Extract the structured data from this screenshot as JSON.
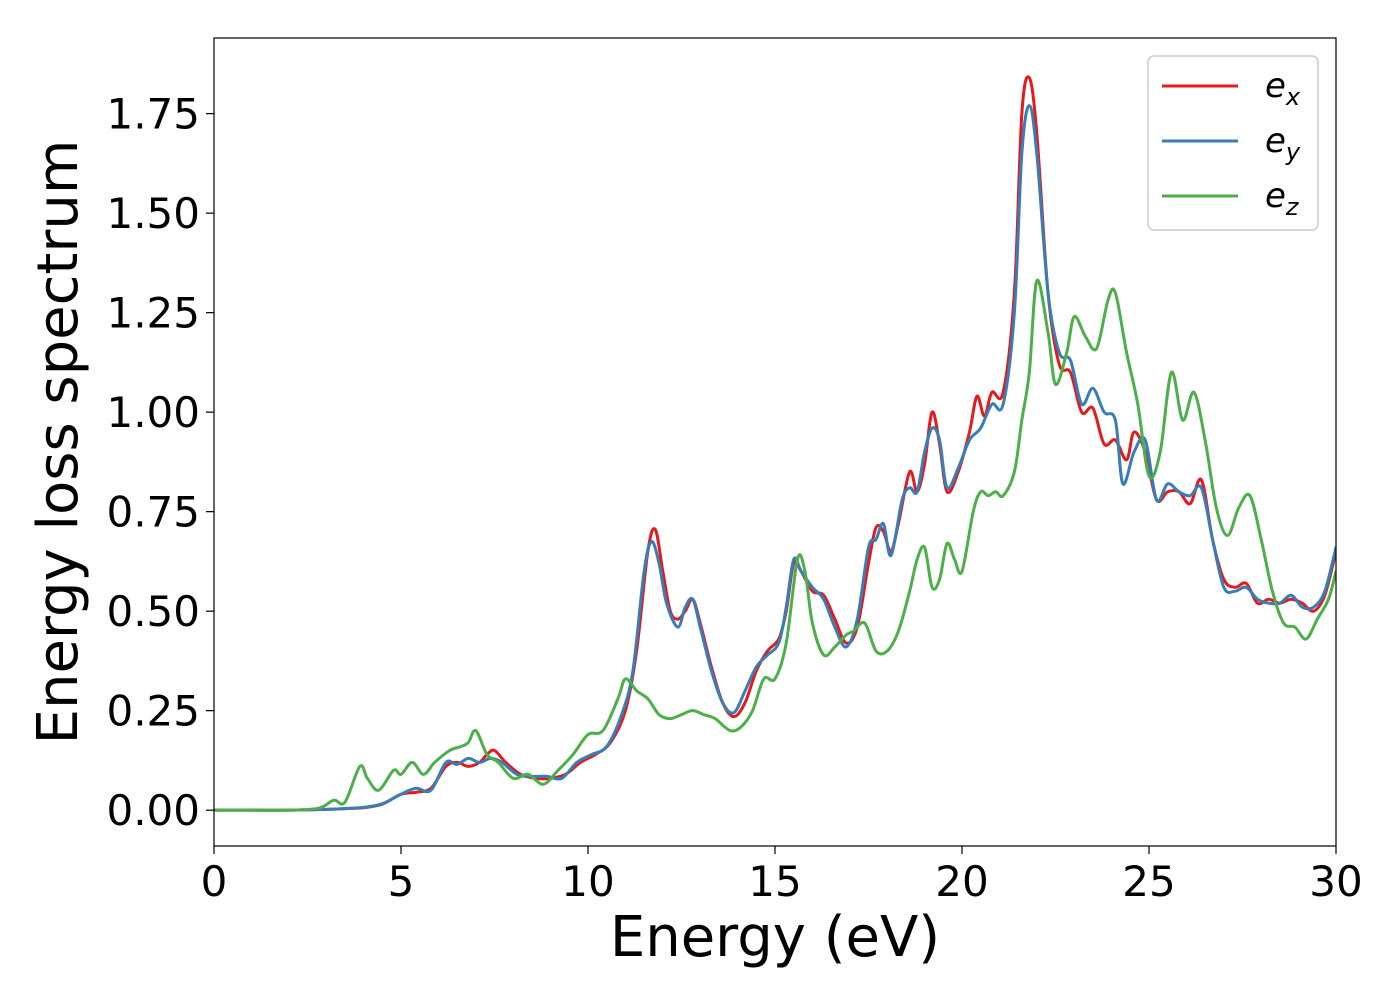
{
  "chart_data": {
    "type": "line",
    "title": "",
    "xlabel": "Energy (eV)",
    "ylabel": "Energy loss spectrum",
    "xlim": [
      0,
      30
    ],
    "ylim": [
      -0.09,
      1.94
    ],
    "xticks": [
      0,
      5,
      10,
      15,
      20,
      25,
      30
    ],
    "xtick_labels": [
      "0",
      "5",
      "10",
      "15",
      "20",
      "25",
      "30"
    ],
    "yticks": [
      0.0,
      0.25,
      0.5,
      0.75,
      1.0,
      1.25,
      1.5,
      1.75
    ],
    "ytick_labels": [
      "0.00",
      "0.25",
      "0.50",
      "0.75",
      "1.00",
      "1.25",
      "1.50",
      "1.75"
    ],
    "grid": false,
    "legend_position": "top-right",
    "series": [
      {
        "name": "e",
        "subscript": "x",
        "color": "#e41a1c",
        "points": [
          [
            0,
            0.0
          ],
          [
            1,
            0.0
          ],
          [
            2,
            0.0
          ],
          [
            3,
            0.002
          ],
          [
            3.5,
            0.004
          ],
          [
            4,
            0.006
          ],
          [
            4.5,
            0.015
          ],
          [
            5,
            0.04
          ],
          [
            5.4,
            0.045
          ],
          [
            5.8,
            0.055
          ],
          [
            6.2,
            0.11
          ],
          [
            6.5,
            0.12
          ],
          [
            6.8,
            0.11
          ],
          [
            7.1,
            0.12
          ],
          [
            7.3,
            0.14
          ],
          [
            7.5,
            0.15
          ],
          [
            7.8,
            0.12
          ],
          [
            8.2,
            0.09
          ],
          [
            8.6,
            0.08
          ],
          [
            9.0,
            0.08
          ],
          [
            9.4,
            0.09
          ],
          [
            9.8,
            0.12
          ],
          [
            10.2,
            0.14
          ],
          [
            10.6,
            0.17
          ],
          [
            11.0,
            0.25
          ],
          [
            11.3,
            0.4
          ],
          [
            11.6,
            0.65
          ],
          [
            11.8,
            0.705
          ],
          [
            12.0,
            0.6
          ],
          [
            12.2,
            0.5
          ],
          [
            12.4,
            0.48
          ],
          [
            12.6,
            0.5
          ],
          [
            12.8,
            0.53
          ],
          [
            13.0,
            0.47
          ],
          [
            13.3,
            0.36
          ],
          [
            13.6,
            0.27
          ],
          [
            13.9,
            0.235
          ],
          [
            14.2,
            0.27
          ],
          [
            14.5,
            0.35
          ],
          [
            14.8,
            0.4
          ],
          [
            15.1,
            0.43
          ],
          [
            15.3,
            0.5
          ],
          [
            15.5,
            0.62
          ],
          [
            15.7,
            0.6
          ],
          [
            16.0,
            0.55
          ],
          [
            16.3,
            0.54
          ],
          [
            16.6,
            0.48
          ],
          [
            16.9,
            0.42
          ],
          [
            17.2,
            0.46
          ],
          [
            17.5,
            0.62
          ],
          [
            17.7,
            0.71
          ],
          [
            17.9,
            0.7
          ],
          [
            18.1,
            0.65
          ],
          [
            18.3,
            0.72
          ],
          [
            18.6,
            0.85
          ],
          [
            18.8,
            0.8
          ],
          [
            19.0,
            0.87
          ],
          [
            19.2,
            1.0
          ],
          [
            19.4,
            0.92
          ],
          [
            19.6,
            0.8
          ],
          [
            19.9,
            0.85
          ],
          [
            20.2,
            0.95
          ],
          [
            20.4,
            1.04
          ],
          [
            20.6,
            0.99
          ],
          [
            20.8,
            1.05
          ],
          [
            21.1,
            1.05
          ],
          [
            21.4,
            1.3
          ],
          [
            21.6,
            1.75
          ],
          [
            21.8,
            1.84
          ],
          [
            22.0,
            1.7
          ],
          [
            22.3,
            1.3
          ],
          [
            22.6,
            1.12
          ],
          [
            22.9,
            1.1
          ],
          [
            23.2,
            1.0
          ],
          [
            23.5,
            1.01
          ],
          [
            23.8,
            0.92
          ],
          [
            24.1,
            0.93
          ],
          [
            24.4,
            0.88
          ],
          [
            24.6,
            0.95
          ],
          [
            24.9,
            0.9
          ],
          [
            25.2,
            0.78
          ],
          [
            25.5,
            0.8
          ],
          [
            25.8,
            0.8
          ],
          [
            26.1,
            0.77
          ],
          [
            26.4,
            0.83
          ],
          [
            26.7,
            0.68
          ],
          [
            27.0,
            0.58
          ],
          [
            27.3,
            0.56
          ],
          [
            27.6,
            0.57
          ],
          [
            27.9,
            0.52
          ],
          [
            28.2,
            0.53
          ],
          [
            28.5,
            0.52
          ],
          [
            28.8,
            0.53
          ],
          [
            29.1,
            0.52
          ],
          [
            29.4,
            0.5
          ],
          [
            29.7,
            0.54
          ],
          [
            30,
            0.65
          ]
        ]
      },
      {
        "name": "e",
        "subscript": "y",
        "color": "#377eb8",
        "points": [
          [
            0,
            0.0
          ],
          [
            1,
            0.0
          ],
          [
            2,
            0.0
          ],
          [
            3,
            0.002
          ],
          [
            3.5,
            0.004
          ],
          [
            4,
            0.007
          ],
          [
            4.5,
            0.016
          ],
          [
            5,
            0.04
          ],
          [
            5.4,
            0.055
          ],
          [
            5.8,
            0.05
          ],
          [
            6.2,
            0.12
          ],
          [
            6.5,
            0.115
          ],
          [
            6.8,
            0.13
          ],
          [
            7.1,
            0.12
          ],
          [
            7.4,
            0.13
          ],
          [
            7.7,
            0.12
          ],
          [
            8.1,
            0.09
          ],
          [
            8.5,
            0.085
          ],
          [
            8.9,
            0.085
          ],
          [
            9.3,
            0.08
          ],
          [
            9.7,
            0.12
          ],
          [
            10.1,
            0.14
          ],
          [
            10.5,
            0.16
          ],
          [
            10.9,
            0.24
          ],
          [
            11.2,
            0.35
          ],
          [
            11.5,
            0.6
          ],
          [
            11.7,
            0.675
          ],
          [
            11.9,
            0.62
          ],
          [
            12.1,
            0.52
          ],
          [
            12.4,
            0.46
          ],
          [
            12.6,
            0.51
          ],
          [
            12.8,
            0.53
          ],
          [
            13.0,
            0.46
          ],
          [
            13.3,
            0.35
          ],
          [
            13.6,
            0.27
          ],
          [
            13.9,
            0.245
          ],
          [
            14.2,
            0.3
          ],
          [
            14.5,
            0.36
          ],
          [
            14.8,
            0.39
          ],
          [
            15.1,
            0.42
          ],
          [
            15.3,
            0.51
          ],
          [
            15.5,
            0.63
          ],
          [
            15.7,
            0.6
          ],
          [
            16.0,
            0.56
          ],
          [
            16.3,
            0.53
          ],
          [
            16.6,
            0.46
          ],
          [
            16.9,
            0.41
          ],
          [
            17.2,
            0.48
          ],
          [
            17.5,
            0.66
          ],
          [
            17.7,
            0.68
          ],
          [
            17.9,
            0.72
          ],
          [
            18.1,
            0.64
          ],
          [
            18.4,
            0.78
          ],
          [
            18.6,
            0.81
          ],
          [
            18.8,
            0.8
          ],
          [
            19.0,
            0.9
          ],
          [
            19.2,
            0.96
          ],
          [
            19.4,
            0.93
          ],
          [
            19.6,
            0.81
          ],
          [
            19.9,
            0.86
          ],
          [
            20.2,
            0.93
          ],
          [
            20.5,
            0.96
          ],
          [
            20.8,
            1.02
          ],
          [
            21.1,
            1.02
          ],
          [
            21.4,
            1.25
          ],
          [
            21.6,
            1.65
          ],
          [
            21.8,
            1.77
          ],
          [
            22.0,
            1.65
          ],
          [
            22.3,
            1.3
          ],
          [
            22.6,
            1.15
          ],
          [
            22.9,
            1.13
          ],
          [
            23.2,
            1.02
          ],
          [
            23.5,
            1.06
          ],
          [
            23.8,
            1.0
          ],
          [
            24.1,
            0.98
          ],
          [
            24.3,
            0.82
          ],
          [
            24.6,
            0.9
          ],
          [
            24.9,
            0.93
          ],
          [
            25.2,
            0.78
          ],
          [
            25.5,
            0.82
          ],
          [
            25.8,
            0.8
          ],
          [
            26.1,
            0.79
          ],
          [
            26.4,
            0.81
          ],
          [
            26.7,
            0.68
          ],
          [
            27.0,
            0.56
          ],
          [
            27.3,
            0.55
          ],
          [
            27.6,
            0.56
          ],
          [
            27.9,
            0.53
          ],
          [
            28.2,
            0.52
          ],
          [
            28.5,
            0.52
          ],
          [
            28.8,
            0.54
          ],
          [
            29.1,
            0.51
          ],
          [
            29.4,
            0.51
          ],
          [
            29.7,
            0.55
          ],
          [
            30,
            0.66
          ]
        ]
      },
      {
        "name": "e",
        "subscript": "z",
        "color": "#4daf4a",
        "points": [
          [
            0,
            0.0
          ],
          [
            1,
            0.0
          ],
          [
            2,
            0.0
          ],
          [
            2.8,
            0.005
          ],
          [
            3.2,
            0.025
          ],
          [
            3.5,
            0.02
          ],
          [
            3.9,
            0.11
          ],
          [
            4.1,
            0.08
          ],
          [
            4.4,
            0.05
          ],
          [
            4.8,
            0.1
          ],
          [
            5.0,
            0.09
          ],
          [
            5.3,
            0.12
          ],
          [
            5.6,
            0.09
          ],
          [
            5.9,
            0.12
          ],
          [
            6.3,
            0.15
          ],
          [
            6.6,
            0.16
          ],
          [
            6.8,
            0.17
          ],
          [
            7.0,
            0.2
          ],
          [
            7.3,
            0.14
          ],
          [
            7.6,
            0.12
          ],
          [
            8.0,
            0.08
          ],
          [
            8.4,
            0.09
          ],
          [
            8.8,
            0.065
          ],
          [
            9.2,
            0.1
          ],
          [
            9.6,
            0.14
          ],
          [
            10.0,
            0.19
          ],
          [
            10.4,
            0.2
          ],
          [
            10.8,
            0.28
          ],
          [
            11.0,
            0.33
          ],
          [
            11.3,
            0.3
          ],
          [
            11.6,
            0.28
          ],
          [
            11.9,
            0.24
          ],
          [
            12.2,
            0.23
          ],
          [
            12.5,
            0.24
          ],
          [
            12.8,
            0.25
          ],
          [
            13.1,
            0.24
          ],
          [
            13.4,
            0.23
          ],
          [
            13.8,
            0.2
          ],
          [
            14.1,
            0.21
          ],
          [
            14.4,
            0.25
          ],
          [
            14.7,
            0.33
          ],
          [
            15.0,
            0.33
          ],
          [
            15.3,
            0.42
          ],
          [
            15.6,
            0.63
          ],
          [
            15.8,
            0.6
          ],
          [
            16.0,
            0.47
          ],
          [
            16.3,
            0.39
          ],
          [
            16.6,
            0.41
          ],
          [
            16.9,
            0.44
          ],
          [
            17.1,
            0.45
          ],
          [
            17.4,
            0.47
          ],
          [
            17.7,
            0.4
          ],
          [
            18.0,
            0.4
          ],
          [
            18.3,
            0.45
          ],
          [
            18.6,
            0.55
          ],
          [
            18.8,
            0.63
          ],
          [
            19.0,
            0.66
          ],
          [
            19.2,
            0.56
          ],
          [
            19.4,
            0.58
          ],
          [
            19.6,
            0.67
          ],
          [
            19.8,
            0.63
          ],
          [
            20.0,
            0.6
          ],
          [
            20.3,
            0.75
          ],
          [
            20.5,
            0.8
          ],
          [
            20.7,
            0.79
          ],
          [
            20.9,
            0.8
          ],
          [
            21.1,
            0.79
          ],
          [
            21.4,
            0.85
          ],
          [
            21.6,
            0.98
          ],
          [
            21.8,
            1.1
          ],
          [
            22.0,
            1.33
          ],
          [
            22.3,
            1.2
          ],
          [
            22.5,
            1.07
          ],
          [
            22.8,
            1.15
          ],
          [
            23.0,
            1.24
          ],
          [
            23.3,
            1.19
          ],
          [
            23.6,
            1.16
          ],
          [
            23.9,
            1.28
          ],
          [
            24.1,
            1.3
          ],
          [
            24.4,
            1.15
          ],
          [
            24.7,
            1.02
          ],
          [
            25.0,
            0.84
          ],
          [
            25.3,
            0.9
          ],
          [
            25.6,
            1.1
          ],
          [
            25.9,
            0.98
          ],
          [
            26.2,
            1.05
          ],
          [
            26.5,
            0.93
          ],
          [
            26.8,
            0.76
          ],
          [
            27.1,
            0.69
          ],
          [
            27.4,
            0.76
          ],
          [
            27.7,
            0.79
          ],
          [
            28.0,
            0.68
          ],
          [
            28.3,
            0.55
          ],
          [
            28.6,
            0.47
          ],
          [
            28.9,
            0.46
          ],
          [
            29.2,
            0.43
          ],
          [
            29.5,
            0.48
          ],
          [
            29.8,
            0.53
          ],
          [
            30,
            0.6
          ]
        ]
      }
    ]
  }
}
